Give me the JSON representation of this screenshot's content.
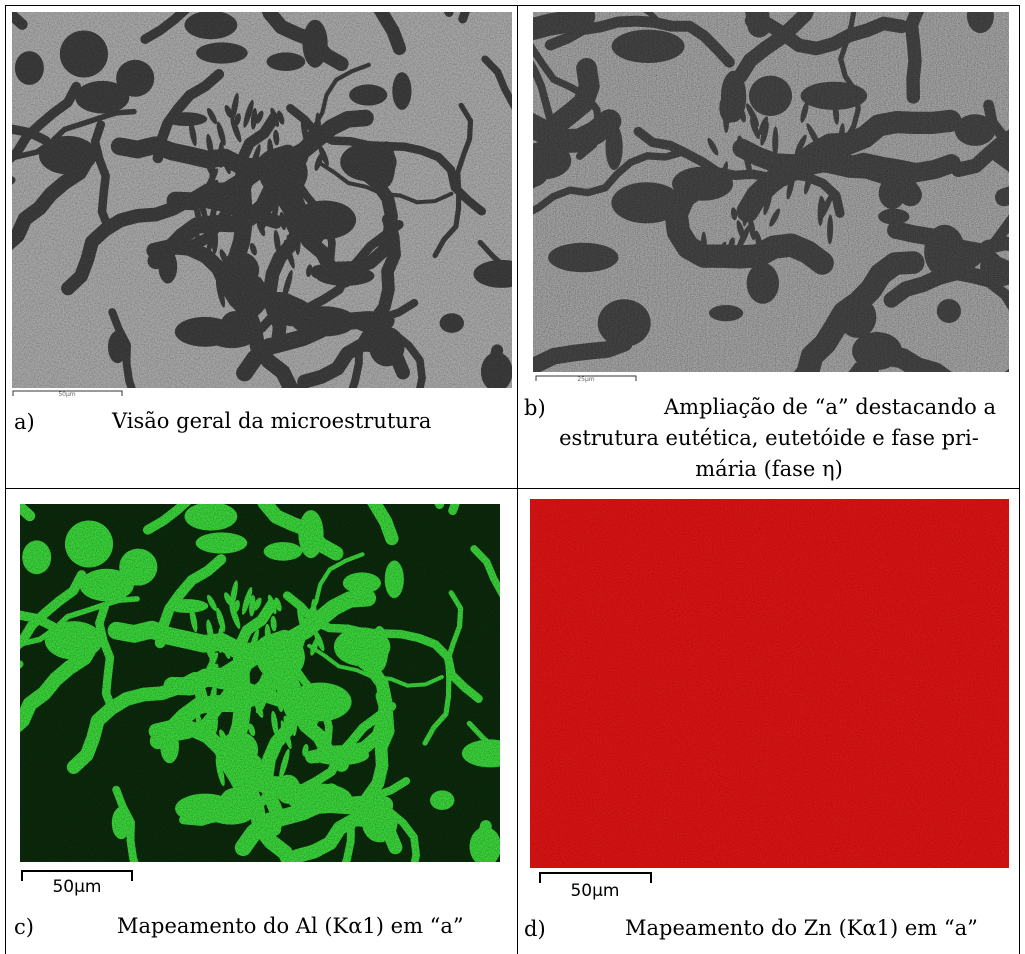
{
  "panels": [
    {
      "label": "a)",
      "caption_lines": [
        "Visão geral da microestrutura"
      ],
      "scale_bar": "50µm"
    },
    {
      "label": "b)",
      "caption_lines": [
        "Ampliação de “a” destacando a",
        "estrutura eutética, eutetóide e fase pri-",
        "mária (fase η)"
      ],
      "scale_bar": "25µm"
    },
    {
      "label": "c)",
      "caption_lines": [
        "Mapeamento do Al (Kα1) em “a”"
      ],
      "scale_bar": "50µm"
    },
    {
      "label": "d)",
      "caption_lines": [
        "Mapeamento do Zn (Kα1) em “a”"
      ],
      "scale_bar": "50µm"
    }
  ]
}
